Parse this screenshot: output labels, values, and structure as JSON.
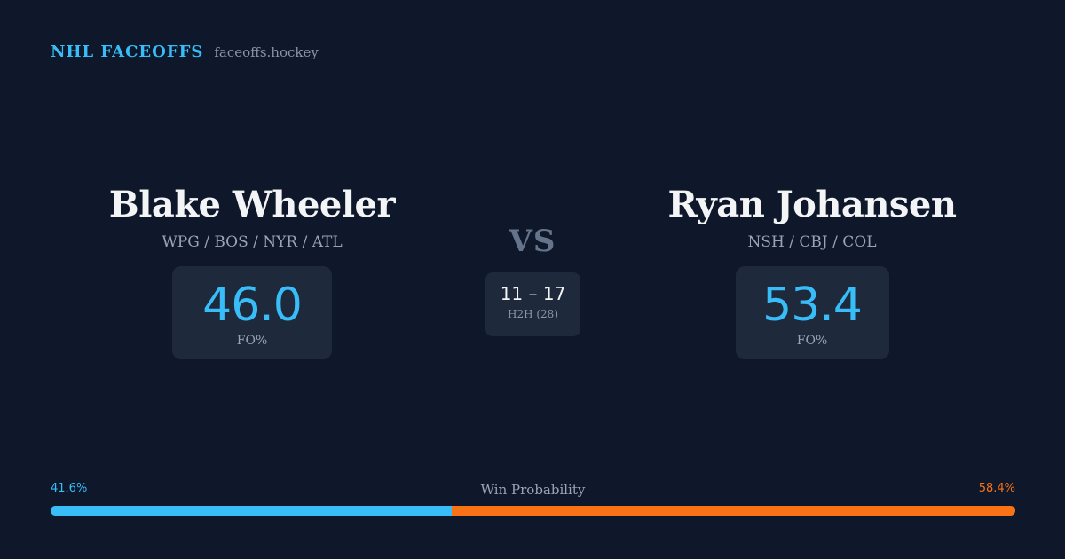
{
  "brand": {
    "title": "NHL FACEOFFS",
    "url": "faceoffs.hockey"
  },
  "player_left": {
    "name": "Blake Wheeler",
    "teams": "WPG / BOS / NYR / ATL",
    "fo_value": "46.0",
    "fo_label": "FO%"
  },
  "player_right": {
    "name": "Ryan Johansen",
    "teams": "NSH / CBJ / COL",
    "fo_value": "53.4",
    "fo_label": "FO%"
  },
  "vs_label": "VS",
  "h2h": {
    "score": "11 – 17",
    "label": "H2H (28)"
  },
  "win_probability": {
    "title": "Win Probability",
    "left_label": "41.6%",
    "right_label": "58.4%",
    "left_value": 41.6,
    "right_value": 58.4
  },
  "colors": {
    "background": "#0f172a",
    "card": "#1e293b",
    "accent_left": "#38bdf8",
    "accent_right": "#f97316"
  }
}
